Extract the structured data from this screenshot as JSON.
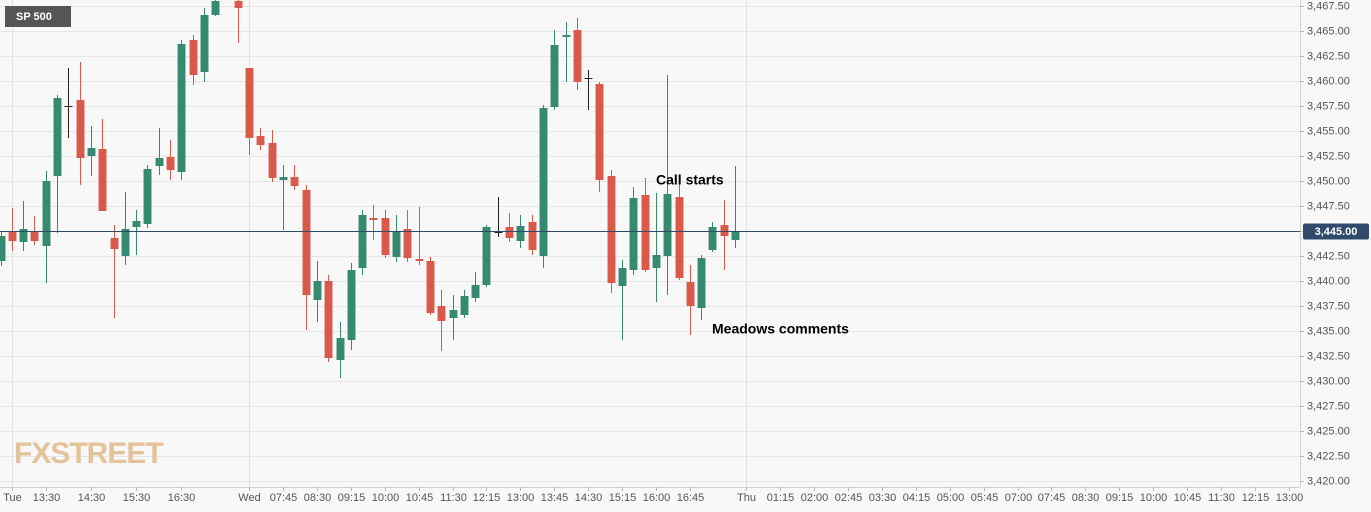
{
  "chart_data": {
    "type": "candlestick",
    "label": "SP 500",
    "watermark": "FXSTREET",
    "up_color": "#378a72",
    "down_color": "#d95a4b",
    "doji_color": "#222222",
    "last_price": {
      "value": 3445,
      "label": "3,445.00"
    },
    "last_price_color": "#2f4a6a",
    "annotations": [
      "Call starts",
      "Meadows comments"
    ],
    "open": [
      3442.0,
      3445.0,
      3443.9,
      3445.0,
      3443.5,
      3450.5,
      3457.5,
      3458.1,
      3452.5,
      3453.2,
      3444.3,
      3442.5,
      3445.4,
      3445.7,
      3451.5,
      3452.4,
      3450.9,
      3464.1,
      3460.9,
      3466.6,
      null,
      3468.0,
      3461.3,
      3454.5,
      3453.8,
      3450.1,
      3450.4,
      3449.1,
      3438.1,
      3440.0,
      3432.1,
      3434.1,
      3441.3,
      3446.3,
      3446.3,
      3442.4,
      3445.2,
      3442.2,
      3442.0,
      3437.5,
      3436.3,
      3436.6,
      3438.3,
      3439.6,
      3444.9,
      3445.4,
      3444.0,
      3445.9,
      3442.5,
      3457.4,
      3464.4,
      3465.1,
      3460.3,
      3459.7,
      3450.5,
      3439.5,
      3441.1,
      3448.6,
      3441.3,
      3442.5,
      3448.4,
      3439.9,
      3437.3,
      3443.1,
      3445.6,
      3444.1
    ],
    "high": [
      3445.0,
      3447.3,
      3448.0,
      3446.5,
      3451.0,
      3458.6,
      3461.3,
      3461.9,
      3455.5,
      3456.2,
      3445.6,
      3448.9,
      3447.1,
      3451.6,
      3455.3,
      3454.1,
      3464.1,
      3464.6,
      3467.3,
      3469.0,
      null,
      3469.0,
      3461.3,
      3455.3,
      3455.1,
      3451.6,
      3451.6,
      3449.6,
      3442.0,
      3440.6,
      3435.9,
      3441.8,
      3447.1,
      3447.6,
      3447.1,
      3446.6,
      3447.1,
      3447.4,
      3442.4,
      3439.1,
      3438.6,
      3439.1,
      3440.9,
      3445.6,
      3448.4,
      3446.8,
      3446.6,
      3446.6,
      3457.6,
      3465.1,
      3465.9,
      3466.3,
      3461.1,
      3459.9,
      3451.1,
      3442.1,
      3449.4,
      3450.3,
      3448.8,
      3460.6,
      3449.8,
      3441.6,
      3442.6,
      3445.9,
      3448.1,
      3451.5
    ],
    "low": [
      3441.5,
      3443.0,
      3443.0,
      3443.6,
      3439.8,
      3444.8,
      3454.3,
      3449.6,
      3450.5,
      3447.0,
      3436.3,
      3441.6,
      3442.6,
      3445.3,
      3450.6,
      3450.1,
      3450.1,
      3459.6,
      3459.9,
      3466.5,
      null,
      3463.8,
      3452.6,
      3453.1,
      3449.9,
      3445.1,
      3449.1,
      3435.1,
      3435.9,
      3431.9,
      3430.3,
      3433.1,
      3440.6,
      3444.1,
      3442.3,
      3441.9,
      3441.9,
      3441.6,
      3436.6,
      3433.0,
      3434.1,
      3436.3,
      3437.9,
      3439.4,
      3444.4,
      3443.9,
      3443.3,
      3442.6,
      3441.3,
      3457.1,
      3459.9,
      3459.1,
      3457.1,
      3448.9,
      3438.8,
      3434.1,
      3440.6,
      3440.9,
      3437.9,
      3438.6,
      3440.1,
      3434.6,
      3436.1,
      3442.9,
      3441.1,
      3443.3
    ],
    "close": [
      3444.5,
      3444.0,
      3445.2,
      3444.0,
      3450.0,
      3458.3,
      3457.5,
      3452.3,
      3453.3,
      3447.0,
      3443.2,
      3445.2,
      3446.0,
      3451.2,
      3452.3,
      3451.1,
      3463.7,
      3460.6,
      3466.6,
      3468.0,
      null,
      3467.3,
      3454.3,
      3453.6,
      3450.3,
      3450.4,
      3449.5,
      3438.6,
      3440.0,
      3432.3,
      3434.3,
      3441.1,
      3446.6,
      3446.1,
      3442.6,
      3445.0,
      3442.3,
      3442.0,
      3436.8,
      3436.0,
      3437.1,
      3438.5,
      3439.6,
      3445.4,
      3444.9,
      3444.3,
      3445.5,
      3443.1,
      3457.3,
      3463.6,
      3464.6,
      3459.9,
      3460.3,
      3450.1,
      3439.8,
      3441.3,
      3448.3,
      3441.1,
      3442.6,
      3448.7,
      3440.3,
      3437.5,
      3442.3,
      3445.4,
      3444.5,
      3445.0
    ],
    "xlim": [
      -0.05,
      115
    ],
    "xticks": [
      {
        "value": 1,
        "label": "Tue"
      },
      {
        "value": 4,
        "label": "13:30"
      },
      {
        "value": 8,
        "label": "14:30"
      },
      {
        "value": 12,
        "label": "15:30"
      },
      {
        "value": 16,
        "label": "16:30"
      },
      {
        "value": 22,
        "label": "Wed"
      },
      {
        "value": 25,
        "label": "07:45"
      },
      {
        "value": 28,
        "label": "08:30"
      },
      {
        "value": 31,
        "label": "09:15"
      },
      {
        "value": 34,
        "label": "10:00"
      },
      {
        "value": 37,
        "label": "10:45"
      },
      {
        "value": 40,
        "label": "11:30"
      },
      {
        "value": 43,
        "label": "12:15"
      },
      {
        "value": 46,
        "label": "13:00"
      },
      {
        "value": 49,
        "label": "13:45"
      },
      {
        "value": 52,
        "label": "14:30"
      },
      {
        "value": 55,
        "label": "15:15"
      },
      {
        "value": 58,
        "label": "16:00"
      },
      {
        "value": 61,
        "label": "16:45"
      },
      {
        "value": 66,
        "label": "Thu"
      },
      {
        "value": 69,
        "label": "01:15"
      },
      {
        "value": 72,
        "label": "02:00"
      },
      {
        "value": 75,
        "label": "02:45"
      },
      {
        "value": 78,
        "label": "03:30"
      },
      {
        "value": 81,
        "label": "04:15"
      },
      {
        "value": 84,
        "label": "05:00"
      },
      {
        "value": 87,
        "label": "05:45"
      },
      {
        "value": 90,
        "label": "07:00"
      },
      {
        "value": 93,
        "label": "07:45"
      },
      {
        "value": 96,
        "label": "08:30"
      },
      {
        "value": 99,
        "label": "09:15"
      },
      {
        "value": 102,
        "label": "10:00"
      },
      {
        "value": 105,
        "label": "10:45"
      },
      {
        "value": 108,
        "label": "11:30"
      },
      {
        "value": 111,
        "label": "12:15"
      },
      {
        "value": 114,
        "label": "13:00"
      }
    ],
    "ylim": [
      3419.4,
      3468.1
    ],
    "yticks": [
      {
        "value": 3420,
        "label": "3,420.00"
      },
      {
        "value": 3422.5,
        "label": "3,422.50"
      },
      {
        "value": 3425,
        "label": "3,425.00"
      },
      {
        "value": 3427.5,
        "label": "3,427.50"
      },
      {
        "value": 3430,
        "label": "3,430.00"
      },
      {
        "value": 3432.5,
        "label": "3,432.50"
      },
      {
        "value": 3435,
        "label": "3,435.00"
      },
      {
        "value": 3437.5,
        "label": "3,437.50"
      },
      {
        "value": 3440,
        "label": "3,440.00"
      },
      {
        "value": 3442.5,
        "label": "3,442.50"
      },
      {
        "value": 3445,
        "label": "3,445.00"
      },
      {
        "value": 3447.5,
        "label": "3,447.50"
      },
      {
        "value": 3450,
        "label": "3,450.00"
      },
      {
        "value": 3452.5,
        "label": "3,452.50"
      },
      {
        "value": 3455,
        "label": "3,455.00"
      },
      {
        "value": 3457.5,
        "label": "3,457.50"
      },
      {
        "value": 3460,
        "label": "3,460.00"
      },
      {
        "value": 3462.5,
        "label": "3,462.50"
      },
      {
        "value": 3465,
        "label": "3,465.00"
      },
      {
        "value": 3467.5,
        "label": "3,467.50"
      }
    ],
    "grid": true
  }
}
